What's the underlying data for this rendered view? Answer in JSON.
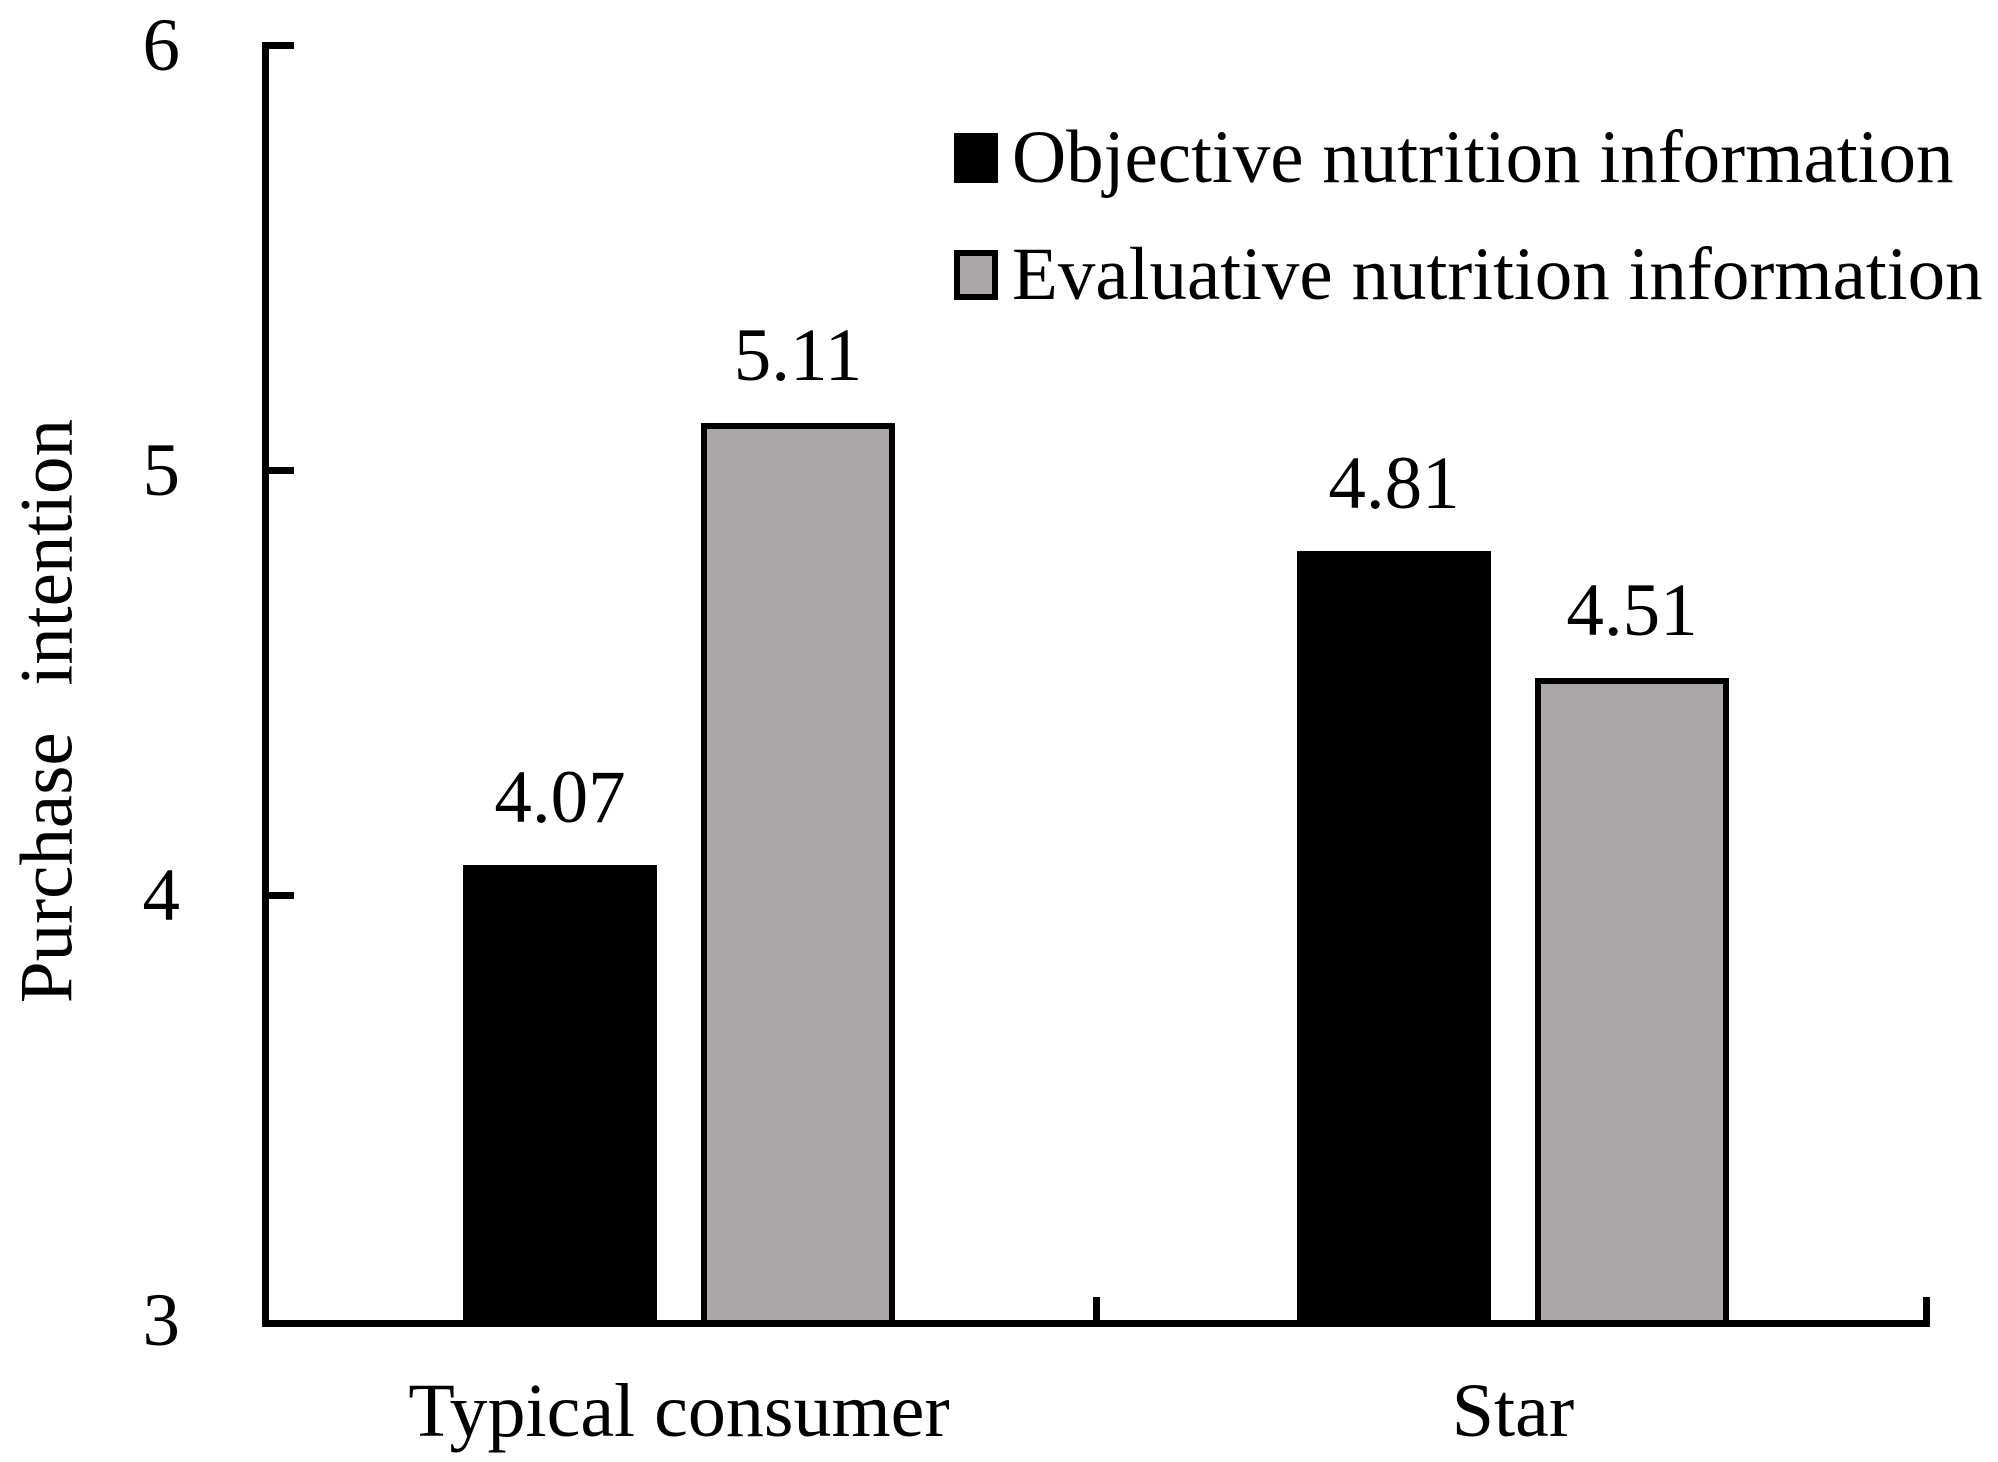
{
  "chart_data": {
    "type": "bar",
    "title": "",
    "ylabel": "Purchase intention",
    "xlabel": "",
    "categories": [
      "Typical consumer",
      "Star"
    ],
    "series": [
      {
        "name": "Objective nutrition information",
        "color": "#000000",
        "values": [
          4.07,
          4.81
        ],
        "value_labels": [
          "4.07",
          "4.81"
        ]
      },
      {
        "name": "Evaluative nutrition information",
        "color": "#aba7a8",
        "values": [
          5.11,
          4.51
        ],
        "value_labels": [
          "5.11",
          "4.51"
        ]
      }
    ],
    "ylim": [
      3,
      6
    ],
    "yticks": [
      3,
      4,
      5,
      6
    ],
    "ytick_labels": [
      "3",
      "4",
      "5",
      "6"
    ],
    "grid": false,
    "legend_position": "top-right",
    "bar_edge_color": "#000000",
    "axis_color": "#000000",
    "background_color": "#ffffff"
  }
}
